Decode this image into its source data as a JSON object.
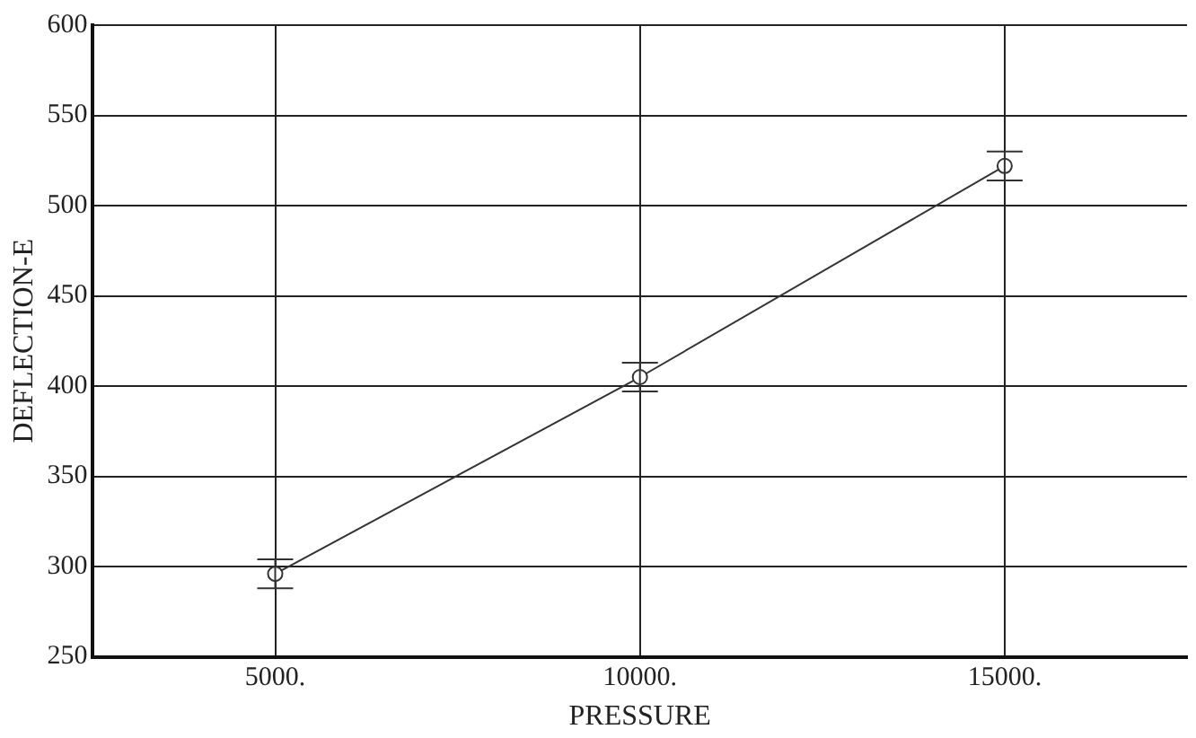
{
  "chart_data": {
    "type": "line",
    "xlabel": "PRESSURE",
    "ylabel": "DEFLECTION-E",
    "x": [
      5000,
      10000,
      15000
    ],
    "series": [
      {
        "color": "#333333",
        "values": [
          296,
          405,
          522
        ],
        "errors": [
          8,
          8,
          8
        ]
      }
    ],
    "xlim": [
      2500,
      17500
    ],
    "xticks": [
      {
        "value": 5000,
        "label": "5000."
      },
      {
        "value": 10000,
        "label": "10000."
      },
      {
        "value": 15000,
        "label": "15000."
      }
    ],
    "ylim": [
      250,
      600
    ],
    "yticks": [
      250,
      300,
      350,
      400,
      450,
      500,
      550,
      600
    ],
    "grid": true,
    "marker": "circle",
    "line_style": "solid",
    "legend": false
  }
}
